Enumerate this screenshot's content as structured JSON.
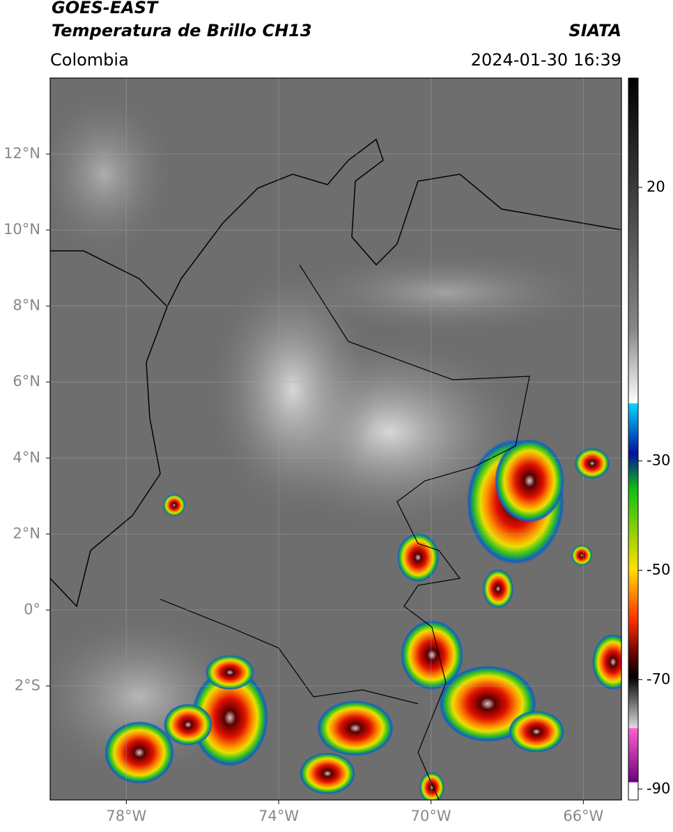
{
  "header": {
    "title": "GOES-EAST",
    "subtitle": "Temperatura de Brillo CH13",
    "source": "SIATA",
    "region": "Colombia",
    "datetime": "2024-01-30 16:39"
  },
  "map": {
    "xlim": [
      -80,
      -65
    ],
    "ylim": [
      -5,
      14
    ],
    "xticks": [
      {
        "value": -78,
        "label": "78°W"
      },
      {
        "value": -74,
        "label": "74°W"
      },
      {
        "value": -70,
        "label": "70°W"
      },
      {
        "value": -66,
        "label": "66°W"
      }
    ],
    "yticks": [
      {
        "value": 12,
        "label": "12°N"
      },
      {
        "value": 10,
        "label": "10°N"
      },
      {
        "value": 8,
        "label": "8°N"
      },
      {
        "value": 6,
        "label": "6°N"
      },
      {
        "value": 4,
        "label": "4°N"
      },
      {
        "value": 2,
        "label": "2°N"
      },
      {
        "value": 0,
        "label": "0°"
      },
      {
        "value": -2,
        "label": "2°S"
      }
    ],
    "grid": true
  },
  "colorbar": {
    "lim": [
      -92,
      40
    ],
    "ticks": [
      20,
      -30,
      -50,
      -70,
      -90
    ]
  }
}
